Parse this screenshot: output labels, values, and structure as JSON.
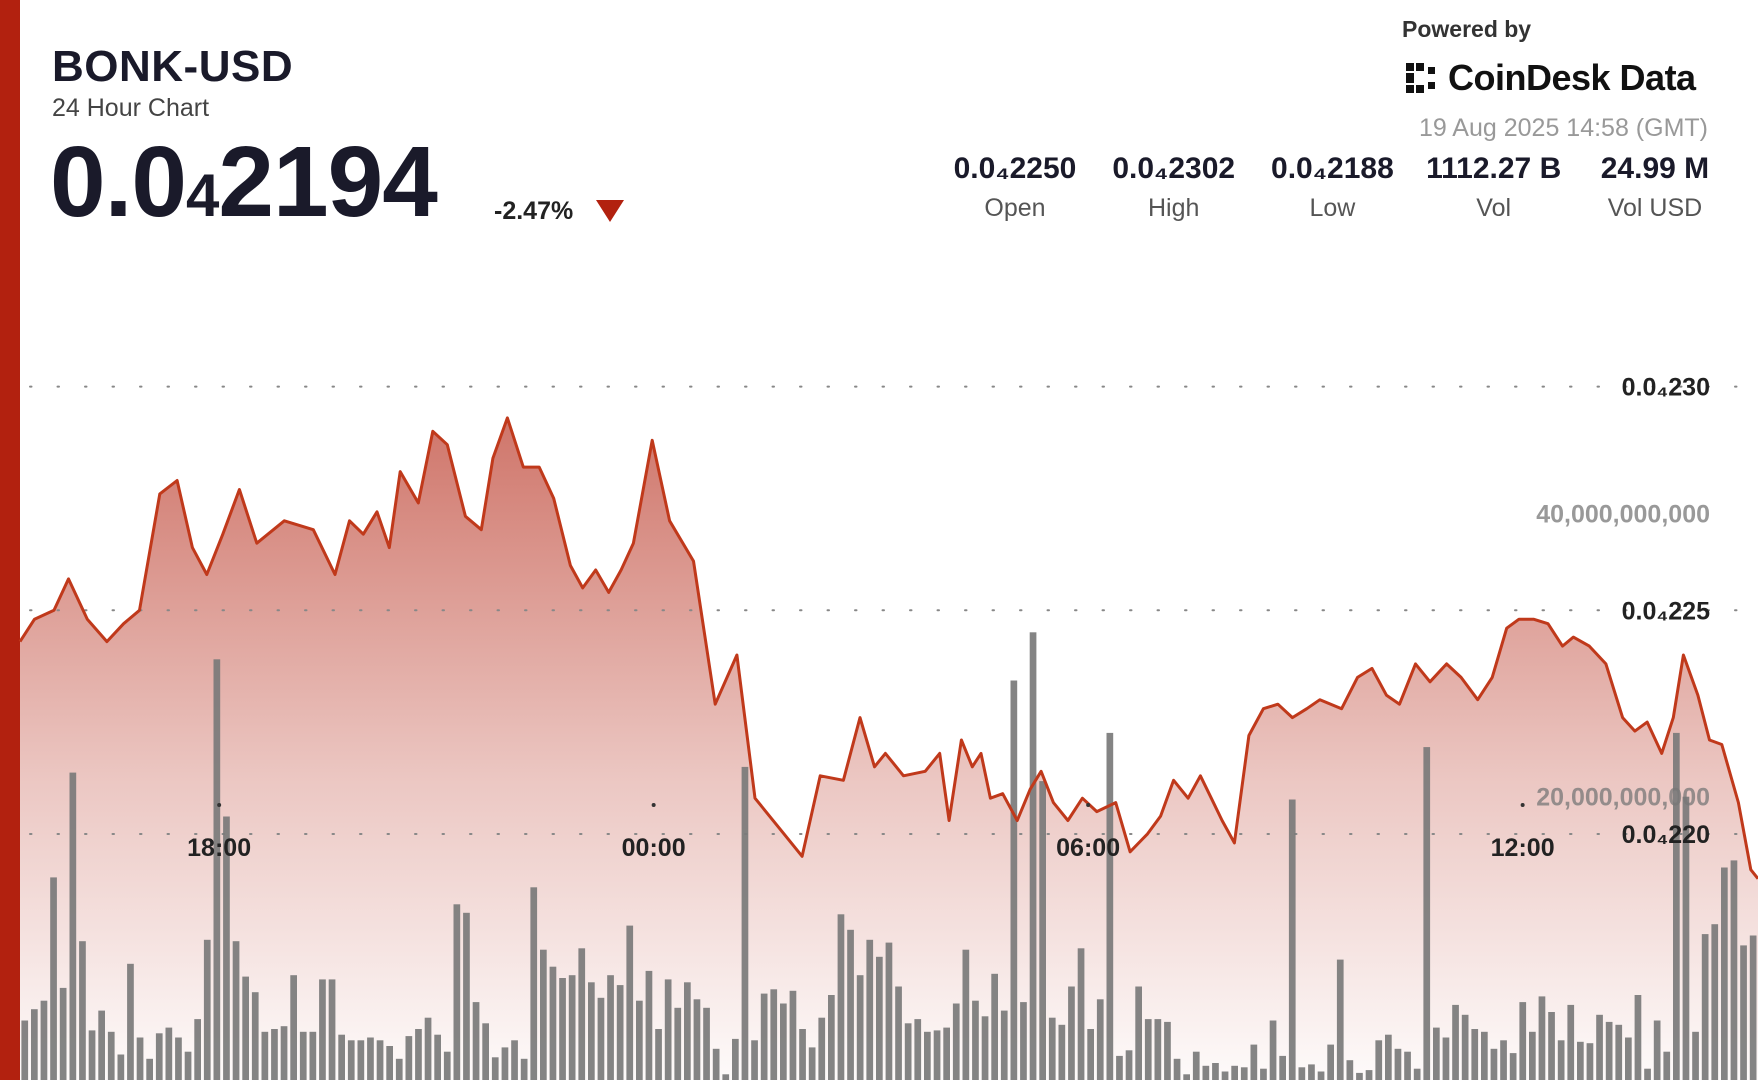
{
  "header": {
    "symbol": "BONK-USD",
    "subtitle": "24 Hour Chart",
    "price_main": "0.0",
    "price_sub": "4",
    "price_rest": "2194",
    "change": "-2.47%"
  },
  "branding": {
    "powered_by": "Powered by",
    "name": "CoinDesk Data",
    "timestamp": "19 Aug 2025 14:58 (GMT)"
  },
  "stats": [
    {
      "value": "0.0₄2250",
      "label": "Open"
    },
    {
      "value": "0.0₄2302",
      "label": "High"
    },
    {
      "value": "0.0₄2188",
      "label": "Low"
    },
    {
      "value": "1112.27 B",
      "label": "Vol"
    },
    {
      "value": "24.99 M",
      "label": "Vol USD"
    }
  ],
  "colors": {
    "accent": "#b2210f",
    "line": "#c0391b",
    "bar": "#7a7a7a",
    "text": "#1a1a2a"
  },
  "chart_data": {
    "type": "area",
    "grid": "dotted horizontal",
    "x_ticks": [
      "18:00",
      "00:00",
      "06:00",
      "12:00"
    ],
    "x_tick_hours": [
      18,
      24,
      30,
      36
    ],
    "x_range_hours": [
      15.25,
      39.25
    ],
    "price_axis": {
      "tick_labels": [
        "0.0₄230",
        "0.0₄225",
        "0.0₄220"
      ],
      "tick_values": [
        2.3,
        2.25,
        2.2
      ],
      "range": [
        2.145,
        2.335
      ],
      "units": "× 1e-5 USD"
    },
    "volume_axis": {
      "tick_labels": [
        "40,000,000,000",
        "20,000,000,000"
      ],
      "tick_values": [
        40000000000,
        20000000000
      ],
      "range": [
        0,
        60000000000
      ]
    },
    "price": {
      "x_hours": [
        15.25,
        15.45,
        15.72,
        15.92,
        16.18,
        16.45,
        16.68,
        16.9,
        17.18,
        17.42,
        17.63,
        17.83,
        18.05,
        18.28,
        18.52,
        18.9,
        19.3,
        19.6,
        19.8,
        19.99,
        20.18,
        20.35,
        20.5,
        20.75,
        20.95,
        21.15,
        21.4,
        21.62,
        21.78,
        21.98,
        22.2,
        22.42,
        22.62,
        22.85,
        23.02,
        23.2,
        23.38,
        23.55,
        23.72,
        23.98,
        24.22,
        24.55,
        24.85,
        25.15,
        25.4,
        25.8,
        26.05,
        26.3,
        26.62,
        26.85,
        27.05,
        27.2,
        27.45,
        27.75,
        27.95,
        28.08,
        28.25,
        28.4,
        28.52,
        28.65,
        28.82,
        29.02,
        29.2,
        29.35,
        29.52,
        29.72,
        29.92,
        30.12,
        30.38,
        30.58,
        30.82,
        31.0,
        31.18,
        31.38,
        31.55,
        31.7,
        31.85,
        32.02,
        32.22,
        32.42,
        32.62,
        32.82,
        33.02,
        33.2,
        33.5,
        33.72,
        33.92,
        34.12,
        34.3,
        34.52,
        34.72,
        34.95,
        35.15,
        35.38,
        35.58,
        35.78,
        35.95,
        36.15,
        36.35,
        36.55,
        36.7,
        36.92,
        37.15,
        37.38,
        37.55,
        37.72,
        37.92,
        38.08,
        38.22,
        38.42,
        38.58,
        38.75,
        38.98,
        39.15,
        39.25
      ],
      "values": [
        2.243,
        2.248,
        2.25,
        2.257,
        2.248,
        2.243,
        2.247,
        2.25,
        2.276,
        2.279,
        2.264,
        2.258,
        2.267,
        2.277,
        2.265,
        2.27,
        2.268,
        2.258,
        2.27,
        2.267,
        2.272,
        2.264,
        2.281,
        2.274,
        2.29,
        2.287,
        2.271,
        2.268,
        2.284,
        2.293,
        2.282,
        2.282,
        2.275,
        2.26,
        2.255,
        2.259,
        2.254,
        2.259,
        2.265,
        2.288,
        2.27,
        2.261,
        2.229,
        2.24,
        2.208,
        2.2,
        2.195,
        2.213,
        2.212,
        2.226,
        2.215,
        2.218,
        2.213,
        2.214,
        2.218,
        2.203,
        2.221,
        2.215,
        2.218,
        2.208,
        2.209,
        2.203,
        2.21,
        2.214,
        2.207,
        2.203,
        2.208,
        2.205,
        2.207,
        2.196,
        2.2,
        2.204,
        2.212,
        2.208,
        2.213,
        2.208,
        2.203,
        2.198,
        2.222,
        2.228,
        2.229,
        2.226,
        2.228,
        2.23,
        2.228,
        2.235,
        2.237,
        2.231,
        2.229,
        2.238,
        2.234,
        2.238,
        2.235,
        2.23,
        2.235,
        2.246,
        2.248,
        2.248,
        2.247,
        2.242,
        2.244,
        2.242,
        2.238,
        2.226,
        2.223,
        2.225,
        2.218,
        2.226,
        2.24,
        2.231,
        2.221,
        2.22,
        2.207,
        2.192,
        2.19
      ]
    },
    "volume": [
      4200000000.0,
      5000000000.0,
      5600000000.0,
      14300000000.0,
      6500000000.0,
      21700000000.0,
      9800000000.0,
      3500000000.0,
      4900000000.0,
      3400000000.0,
      1800000000.0,
      8200000000.0,
      3000000000.0,
      1500000000.0,
      3300000000.0,
      3700000000.0,
      3000000000.0,
      2000000000.0,
      4300000000.0,
      9900000000.0,
      29700000000.0,
      18600000000.0,
      9800000000.0,
      7300000000.0,
      6200000000.0,
      3400000000.0,
      3600000000.0,
      3800000000.0,
      7400000000.0,
      3400000000.0,
      3400000000.0,
      7100000000.0,
      7100000000.0,
      3200000000.0,
      2800000000.0,
      2800000000.0,
      3000000000.0,
      2800000000.0,
      2400000000.0,
      1500000000.0,
      3100000000.0,
      3600000000.0,
      4400000000.0,
      3200000000.0,
      2000000000.0,
      12400000000.0,
      11800000000.0,
      5500000000.0,
      4000000000.0,
      1600000000.0,
      2300000000.0,
      2800000000.0,
      1500000000.0,
      13600000000.0,
      9200000000.0,
      8000000000.0,
      7200000000.0,
      7400000000.0,
      9300000000.0,
      6900000000.0,
      5800000000.0,
      7400000000.0,
      6700000000.0,
      10900000000.0,
      5600000000.0,
      7700000000.0,
      3600000000.0,
      7100000000.0,
      5100000000.0,
      6900000000.0,
      5700000000.0,
      5100000000.0,
      2200000000.0,
      400000000.0,
      2900000000.0,
      22100000000.0,
      2800000000.0,
      6100000000.0,
      6400000000.0,
      5400000000.0,
      6300000000.0,
      3600000000.0,
      2300000000.0,
      4400000000.0,
      6000000000.0,
      11700000000.0,
      10600000000.0,
      7400000000.0,
      9900000000.0,
      8700000000.0,
      9700000000.0,
      6600000000.0,
      4000000000.0,
      4300000000.0,
      3400000000.0,
      3500000000.0,
      3700000000.0,
      5400000000.0,
      9200000000.0,
      5600000000.0,
      4500000000.0,
      7500000000.0,
      4900000000.0,
      28200000000.0,
      5500000000.0,
      31600000000.0,
      21100000000.0,
      4400000000.0,
      3900000000.0,
      6600000000.0,
      9300000000.0,
      3600000000.0,
      5700000000.0,
      24500000000.0,
      1700000000.0,
      2100000000.0,
      6600000000.0,
      4300000000.0,
      4300000000.0,
      4100000000.0,
      1500000000.0,
      400000000.0,
      2000000000.0,
      1000000000.0,
      1200000000.0,
      600000000.0,
      1000000000.0,
      900000000.0,
      2500000000.0,
      800000000.0,
      4200000000.0,
      1700000000.0,
      19800000000.0,
      900000000.0,
      1100000000.0,
      600000000.0,
      2500000000.0,
      8500000000.0,
      1400000000.0,
      500000000.0,
      700000000.0,
      2800000000.0,
      3200000000.0,
      2200000000.0,
      2000000000.0,
      800000000.0,
      23500000000.0,
      3700000000.0,
      3000000000.0,
      5300000000.0,
      4600000000.0,
      3600000000.0,
      3400000000.0,
      2200000000.0,
      2800000000.0,
      1900000000.0,
      5500000000.0,
      3400000000.0,
      5900000000.0,
      4800000000.0,
      2800000000.0,
      5300000000.0,
      2700000000.0,
      2600000000.0,
      4600000000.0,
      4100000000.0,
      3900000000.0,
      3000000000.0,
      6000000000.0,
      800000000.0,
      4200000000.0,
      2000000000.0,
      24500000000.0,
      20000000000.0,
      3400000000.0,
      10300000000.0,
      11000000000.0,
      15000000000.0,
      15500000000.0,
      9500000000.0,
      10200000000.0
    ]
  }
}
